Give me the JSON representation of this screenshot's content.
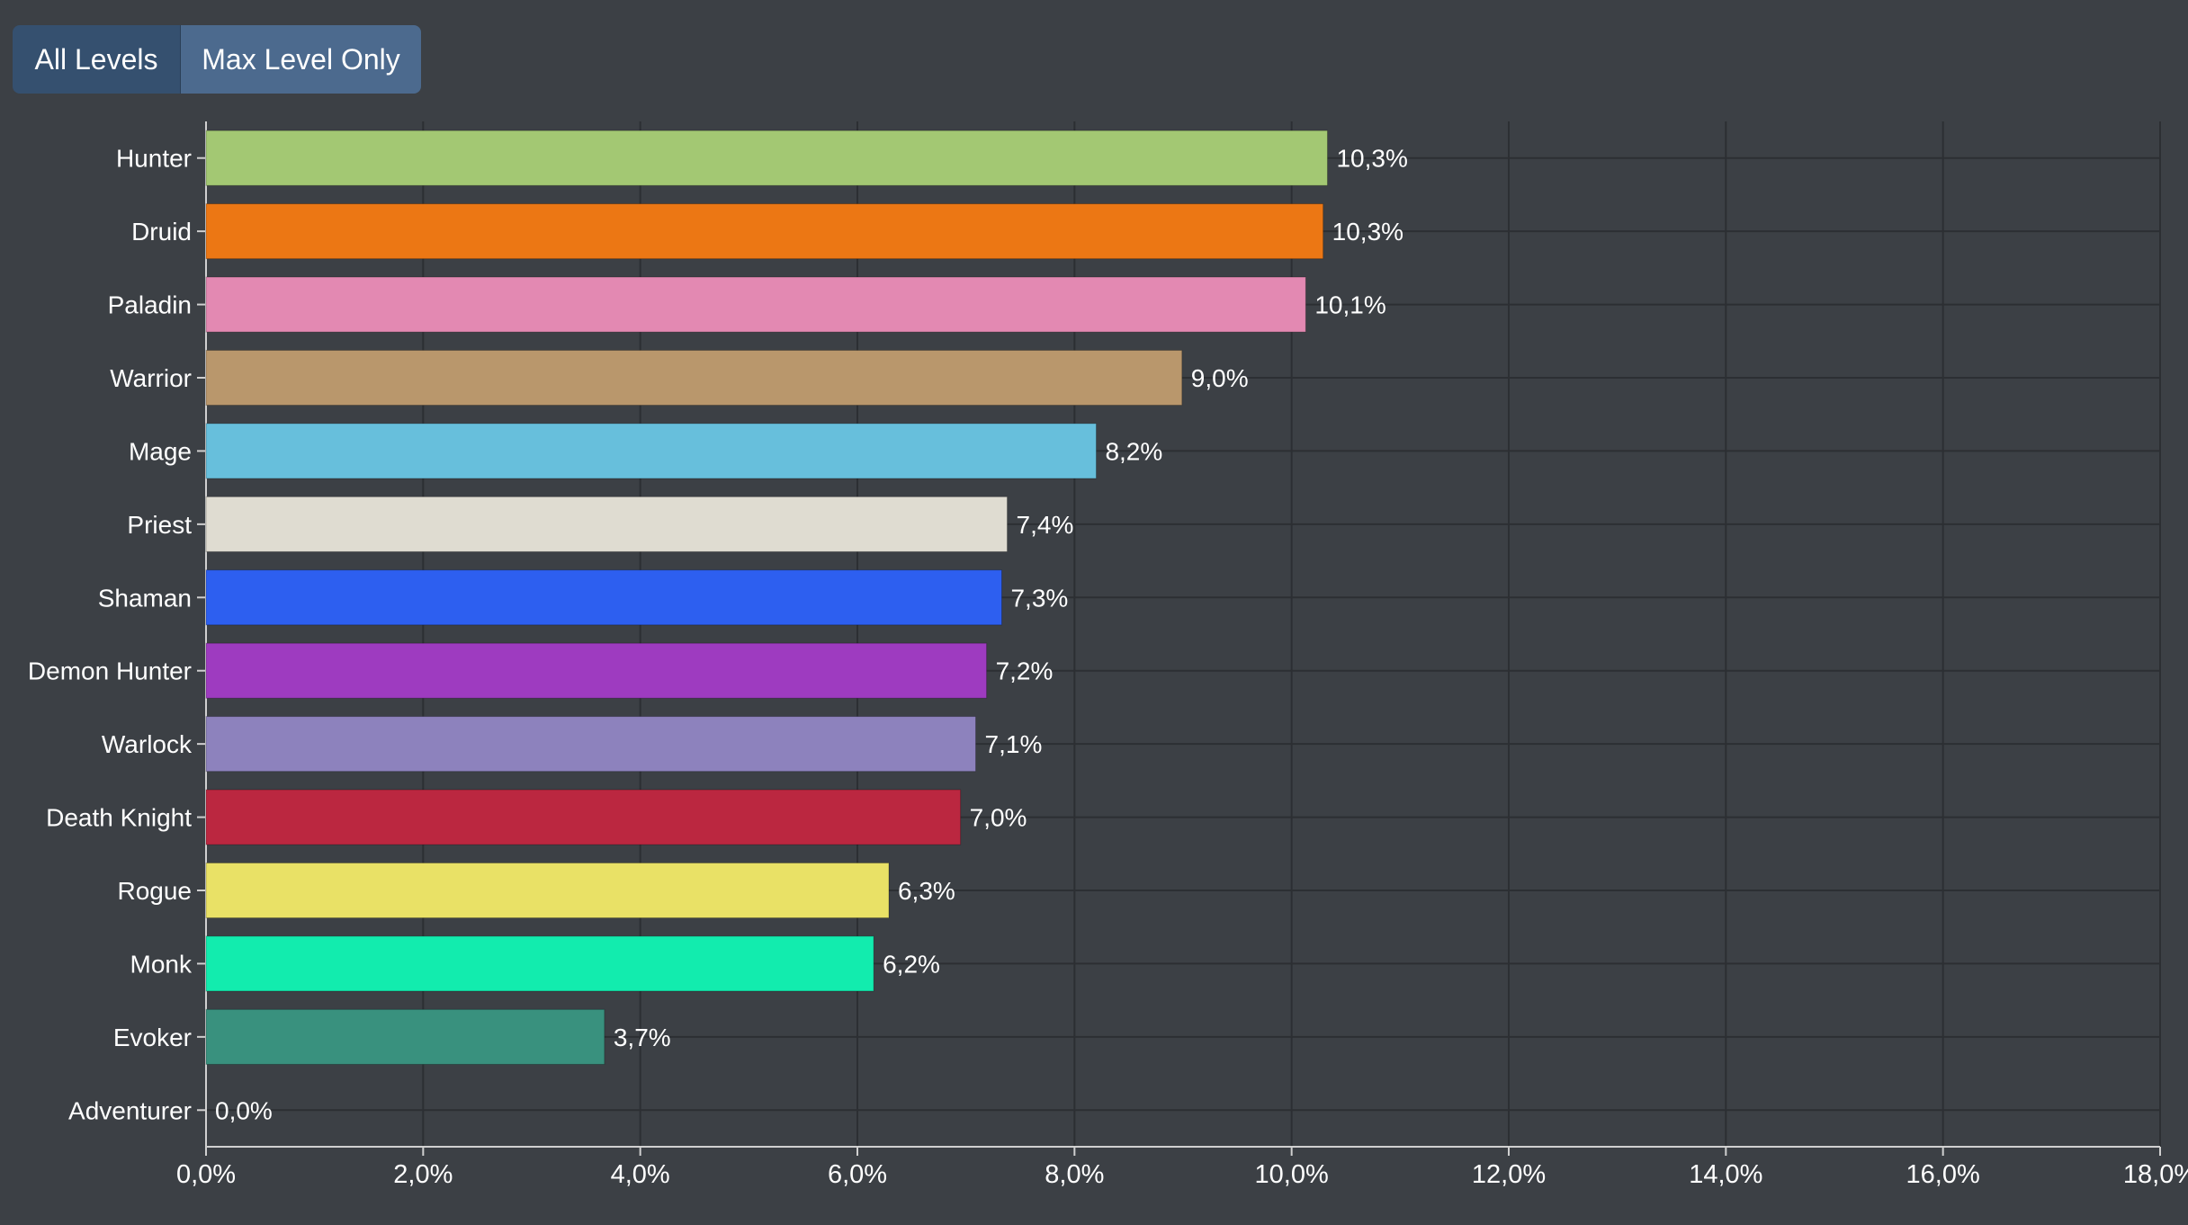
{
  "toggle": {
    "all_levels_label": "All Levels",
    "max_level_label": "Max Level Only",
    "selected": "Max Level Only"
  },
  "colors": {
    "background": "#3c4045",
    "grid": "#2c2f33",
    "axis": "#d0d0d0",
    "label_text": "#ffffff"
  },
  "chart_data": {
    "type": "bar",
    "orientation": "horizontal",
    "categories": [
      "Hunter",
      "Druid",
      "Paladin",
      "Warrior",
      "Mage",
      "Priest",
      "Shaman",
      "Demon Hunter",
      "Warlock",
      "Death Knight",
      "Rogue",
      "Monk",
      "Evoker",
      "Adventurer"
    ],
    "values": [
      10.33,
      10.29,
      10.13,
      8.99,
      8.2,
      7.38,
      7.33,
      7.19,
      7.09,
      6.95,
      6.29,
      6.15,
      3.67,
      0.0
    ],
    "value_labels": [
      "10,3%",
      "10,3%",
      "10,1%",
      "9,0%",
      "8,2%",
      "7,4%",
      "7,3%",
      "7,2%",
      "7,1%",
      "7,0%",
      "6,3%",
      "6,2%",
      "3,7%",
      "0,0%"
    ],
    "bar_colors": [
      "#a3c873",
      "#ec7714",
      "#e389b2",
      "#b9976c",
      "#67bfdc",
      "#dfdcd1",
      "#2d5ff0",
      "#9e3bc0",
      "#8d82bd",
      "#bb2740",
      "#e9e166",
      "#12ecae",
      "#39917e",
      "#6c6c6c"
    ],
    "xlim": [
      0,
      18
    ],
    "xticks": [
      "0,0%",
      "2,0%",
      "4,0%",
      "6,0%",
      "8,0%",
      "10,0%",
      "12,0%",
      "14,0%",
      "16,0%",
      "18,0%"
    ],
    "grid": true,
    "title": "",
    "xlabel": "",
    "ylabel": ""
  }
}
